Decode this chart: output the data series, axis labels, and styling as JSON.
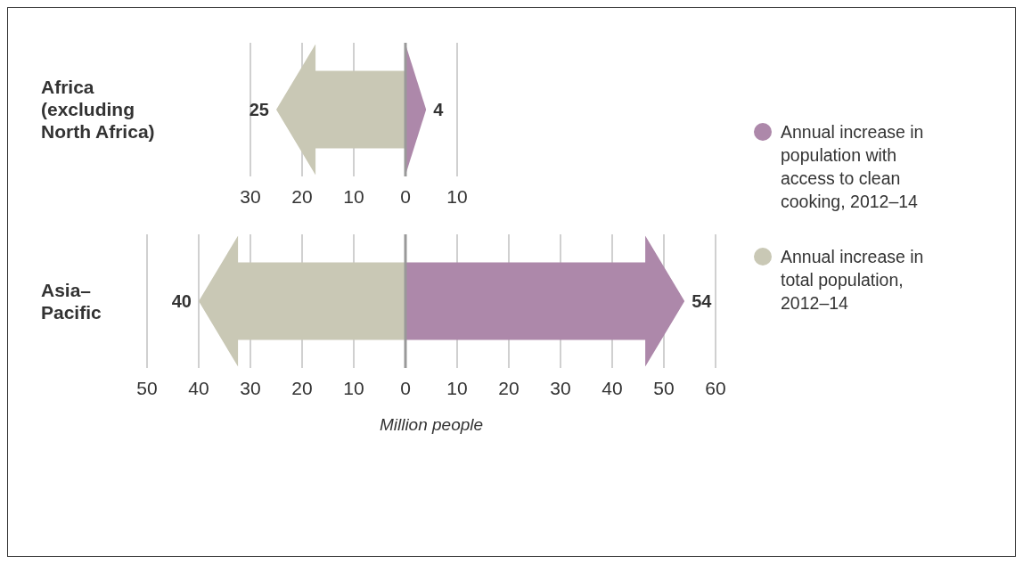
{
  "chart_data": [
    {
      "type": "bar",
      "orientation": "horizontal",
      "categories": [
        "Africa (excluding North Africa)"
      ],
      "xlim": [
        -30,
        10
      ],
      "xticks": [
        {
          "value": -30,
          "label": "30"
        },
        {
          "value": -20,
          "label": "20"
        },
        {
          "value": -10,
          "label": "10"
        },
        0,
        10
      ],
      "grid": "x",
      "legend": "right",
      "series": [
        {
          "name": "Annual increase in population with access to clean cooking, 2012–14",
          "color": "#ad88aa",
          "base": [
            0
          ],
          "values": [
            4
          ],
          "value_labels": [
            "4"
          ]
        },
        {
          "name": "Annual increase in total population, 2012–14",
          "color": "#c9c8b5",
          "base": [
            -25
          ],
          "values": [
            25
          ],
          "value_labels": [
            "25"
          ]
        }
      ]
    },
    {
      "type": "bar",
      "orientation": "horizontal",
      "categories": [
        "Asia–Pacific"
      ],
      "xlim": [
        -50,
        60
      ],
      "xticks": [
        {
          "value": -50,
          "label": "50"
        },
        {
          "value": -40,
          "label": "40"
        },
        {
          "value": -30,
          "label": "30"
        },
        {
          "value": -20,
          "label": "20"
        },
        {
          "value": -10,
          "label": "10"
        },
        0,
        10,
        20,
        30,
        40,
        50,
        60
      ],
      "grid": "x",
      "xlabel": "Million people",
      "series": [
        {
          "color": "#ad88aa",
          "base": [
            0
          ],
          "values": [
            54
          ],
          "value_labels": [
            "54"
          ]
        },
        {
          "color": "#c9c8b5",
          "base": [
            -40
          ],
          "values": [
            40
          ],
          "value_labels": [
            "40"
          ]
        }
      ]
    }
  ]
}
